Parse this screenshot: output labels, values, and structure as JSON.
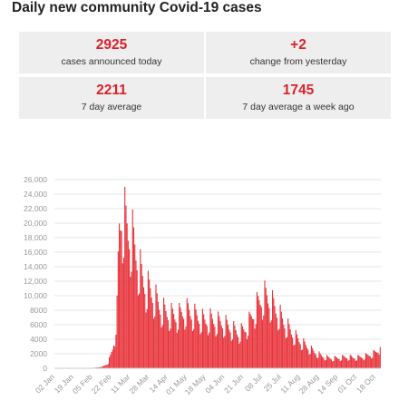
{
  "title": "Daily new community Covid-19 cases",
  "stats": [
    {
      "value": "2925",
      "label": "cases announced today"
    },
    {
      "value": "+2",
      "label": "change from yesterday"
    },
    {
      "value": "2211",
      "label": "7 day average"
    },
    {
      "value": "1745",
      "label": "7 day average a week ago"
    }
  ],
  "colors": {
    "accent": "#d9232b",
    "bar": "#e8343c",
    "card_bg": "#eeeeee",
    "grid": "#e6e6e6",
    "axis_text": "#999999"
  },
  "chart_data": {
    "type": "bar",
    "title": "Daily new community Covid-19 cases",
    "xlabel": "",
    "ylabel": "",
    "ylim": [
      0,
      26000
    ],
    "grid": true,
    "yticks": [
      0,
      2000,
      4000,
      6000,
      8000,
      10000,
      12000,
      14000,
      16000,
      18000,
      20000,
      22000,
      24000,
      26000
    ],
    "ytick_labels": [
      "0",
      "2000",
      "4000",
      "6000",
      "8000",
      "10,000",
      "12,000",
      "14,000",
      "16,000",
      "18,000",
      "20,000",
      "22,000",
      "24,000",
      "26,000"
    ],
    "xtick_labels": [
      "02 Jan",
      "19 Jan",
      "05 Feb",
      "22 Feb",
      "11 Mar",
      "28 Mar",
      "14 Apr",
      "01 May",
      "18 May",
      "04 Jun",
      "21 Jun",
      "08 Jul",
      "25 Jul",
      "11 Aug",
      "28 Aug",
      "14 Sep",
      "01 Oct",
      "18 Oct"
    ],
    "weekly_profile": [
      1.25,
      1.15,
      1.05,
      0.95,
      0.9,
      0.7,
      0.75
    ],
    "anchors": [
      [
        0,
        20
      ],
      [
        25,
        40
      ],
      [
        34,
        60
      ],
      [
        41,
        150
      ],
      [
        45,
        380
      ],
      [
        48,
        800
      ],
      [
        50,
        1600
      ],
      [
        52,
        2700
      ],
      [
        54,
        4300
      ],
      [
        56,
        8000
      ],
      [
        57,
        14000
      ],
      [
        58,
        19000
      ],
      [
        60,
        21000
      ],
      [
        63,
        20000
      ],
      [
        66,
        18500
      ],
      [
        70,
        17500
      ],
      [
        74,
        15000
      ],
      [
        78,
        12500
      ],
      [
        82,
        11000
      ],
      [
        86,
        10500
      ],
      [
        90,
        9500
      ],
      [
        95,
        8200
      ],
      [
        100,
        7500
      ],
      [
        105,
        7200
      ],
      [
        110,
        7000
      ],
      [
        115,
        7500
      ],
      [
        120,
        7800
      ],
      [
        125,
        7200
      ],
      [
        130,
        6800
      ],
      [
        135,
        6400
      ],
      [
        140,
        6600
      ],
      [
        145,
        6300
      ],
      [
        150,
        6200
      ],
      [
        155,
        5800
      ],
      [
        160,
        5300
      ],
      [
        165,
        4800
      ],
      [
        170,
        5100
      ],
      [
        173,
        5700
      ],
      [
        176,
        6500
      ],
      [
        179,
        7500
      ],
      [
        182,
        8400
      ],
      [
        185,
        9200
      ],
      [
        188,
        9700
      ],
      [
        191,
        9600
      ],
      [
        194,
        9000
      ],
      [
        197,
        8400
      ],
      [
        200,
        7700
      ],
      [
        203,
        7000
      ],
      [
        207,
        6100
      ],
      [
        211,
        5300
      ],
      [
        215,
        4500
      ],
      [
        220,
        3800
      ],
      [
        225,
        3200
      ],
      [
        230,
        2600
      ],
      [
        235,
        2100
      ],
      [
        240,
        1700
      ],
      [
        245,
        1450
      ],
      [
        250,
        1350
      ],
      [
        255,
        1400
      ],
      [
        260,
        1500
      ],
      [
        265,
        1500
      ],
      [
        270,
        1450
      ],
      [
        275,
        1500
      ],
      [
        280,
        1650
      ],
      [
        283,
        1800
      ],
      [
        286,
        1950
      ],
      [
        289,
        2150
      ],
      [
        291,
        2400
      ],
      [
        293,
        2925
      ]
    ],
    "values": []
  }
}
